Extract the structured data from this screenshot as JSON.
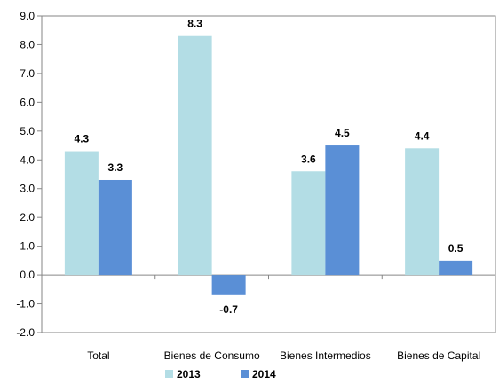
{
  "chart_data": {
    "type": "bar",
    "title": "",
    "xlabel": "",
    "ylabel": "",
    "categories": [
      "Total",
      "Bienes de Consumo",
      "Bienes Intermedios",
      "Bienes de Capital"
    ],
    "series": [
      {
        "name": "2013",
        "values": [
          4.3,
          8.3,
          3.6,
          4.4
        ],
        "labels": [
          "4.3",
          "8.3",
          "3.6",
          "4.4"
        ],
        "color": "#b3dde5"
      },
      {
        "name": "2014",
        "values": [
          3.3,
          -0.7,
          4.5,
          0.5
        ],
        "labels": [
          "3.3",
          "-0.7",
          "4.5",
          "0.5"
        ],
        "color": "#5a8fd6"
      }
    ],
    "ylim": [
      -2.0,
      9.0
    ],
    "yticks": [
      9.0,
      8.0,
      7.0,
      6.0,
      5.0,
      4.0,
      3.0,
      2.0,
      1.0,
      0.0,
      -1.0,
      -2.0
    ],
    "ytick_labels": [
      "9.0",
      "8.0",
      "7.0",
      "6.0",
      "5.0",
      "4.0",
      "3.0",
      "2.0",
      "1.0",
      "0.0",
      "-1.0",
      "-2.0"
    ],
    "grid": false,
    "legend_position": "bottom",
    "axis_color": "#868686"
  }
}
